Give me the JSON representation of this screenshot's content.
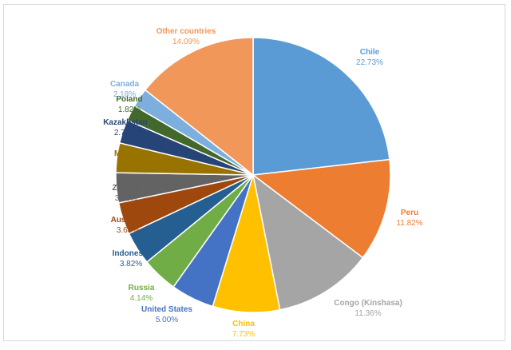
{
  "chart_data": {
    "type": "pie",
    "title": "",
    "slices": [
      {
        "name": "Chile",
        "value": 22.73,
        "label": "22.73%",
        "color": "#5b9bd5"
      },
      {
        "name": "Peru",
        "value": 11.82,
        "label": "11.82%",
        "color": "#ed7d31"
      },
      {
        "name": "Congo (Kinshasa)",
        "value": 11.36,
        "label": "11.36%",
        "color": "#a5a5a5"
      },
      {
        "name": "China",
        "value": 7.73,
        "label": "7.73%",
        "color": "#ffc000"
      },
      {
        "name": "United States",
        "value": 5.0,
        "label": "5.00%",
        "color": "#4472c4"
      },
      {
        "name": "Russia",
        "value": 4.14,
        "label": "4.14%",
        "color": "#70ad47"
      },
      {
        "name": "Indonesia",
        "value": 3.82,
        "label": "3.82%",
        "color": "#255e91"
      },
      {
        "name": "Australia",
        "value": 3.68,
        "label": "3.68%",
        "color": "#9e480e"
      },
      {
        "name": "Zambia",
        "value": 3.45,
        "label": "3.45%",
        "color": "#636363"
      },
      {
        "name": "Mexico",
        "value": 3.41,
        "label": "3.41%",
        "color": "#997300"
      },
      {
        "name": "Kazakhstan",
        "value": 2.73,
        "label": "2.73%",
        "color": "#264478"
      },
      {
        "name": "Poland",
        "value": 1.82,
        "label": "1.82%",
        "color": "#43682b"
      },
      {
        "name": "Canada",
        "value": 2.18,
        "label": "2.18%",
        "color": "#7cafdd"
      },
      {
        "name": "Other countries",
        "value": 14.09,
        "label": "14.09%",
        "color": "#f1975a"
      }
    ]
  }
}
